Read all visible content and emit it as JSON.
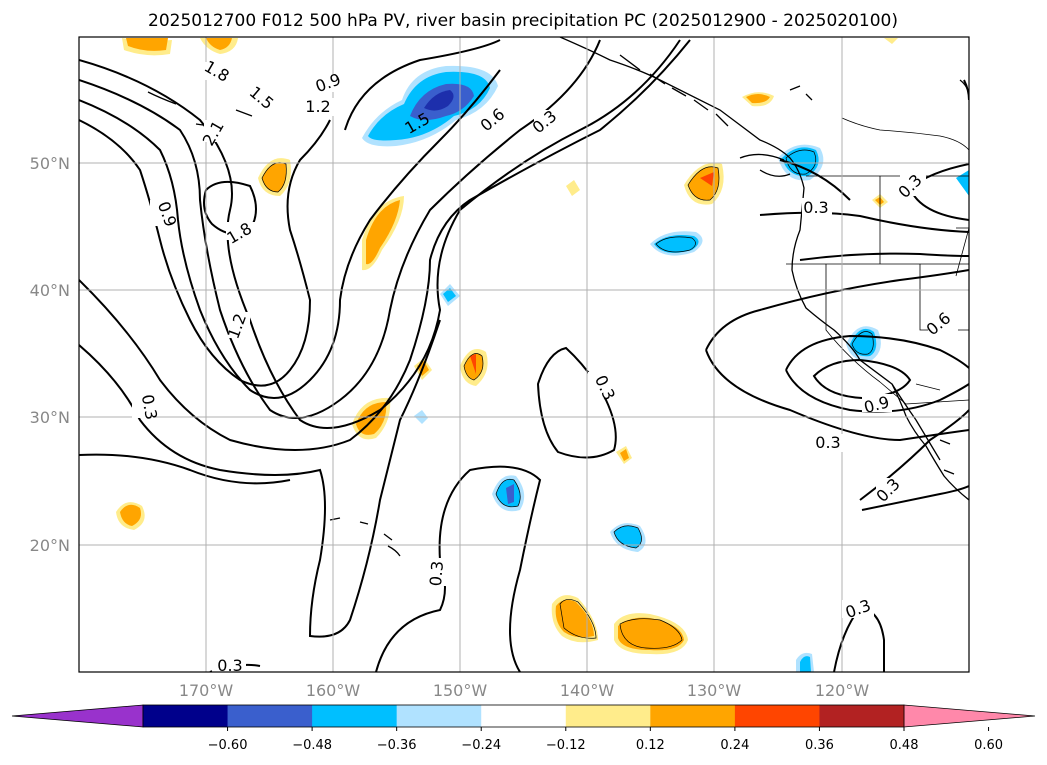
{
  "title": "2025012700 F012 500 hPa PV, river basin precipitation PC (2025012900 - 2025020100)",
  "lat_labels": [
    "50°N",
    "40°N",
    "30°N",
    "20°N"
  ],
  "lon_labels": [
    "170°W",
    "160°W",
    "150°W",
    "140°W",
    "130°W",
    "120°W"
  ],
  "contour_labels": [
    "1.8",
    "1.5",
    "0.9",
    "1.2",
    "2.1",
    "1.5",
    "0.6",
    "0.3",
    "0.9",
    "1.8",
    "1.2",
    "0.3",
    "0.3",
    "0.3",
    "0.3",
    "0.3",
    "0.6",
    "0.9",
    "0.3",
    "0.3",
    "0.3",
    "0.3"
  ],
  "colorbar": {
    "ticks": [
      "−0.60",
      "−0.48",
      "−0.36",
      "−0.24",
      "−0.12",
      "0.12",
      "0.24",
      "0.36",
      "0.48",
      "0.60"
    ],
    "colors": [
      "#9932cc",
      "#00008b",
      "#3a5fcd",
      "#00bfff",
      "#b0e2ff",
      "#ffffff",
      "#ffec8b",
      "#ffa500",
      "#ff4500",
      "#b22222",
      "#ff88aa"
    ]
  },
  "map": {
    "extent": {
      "lon_min": -180,
      "lon_max": -110,
      "lat_min": 10,
      "lat_max": 60
    },
    "gridlines": true,
    "contour_interval": 0.3
  }
}
